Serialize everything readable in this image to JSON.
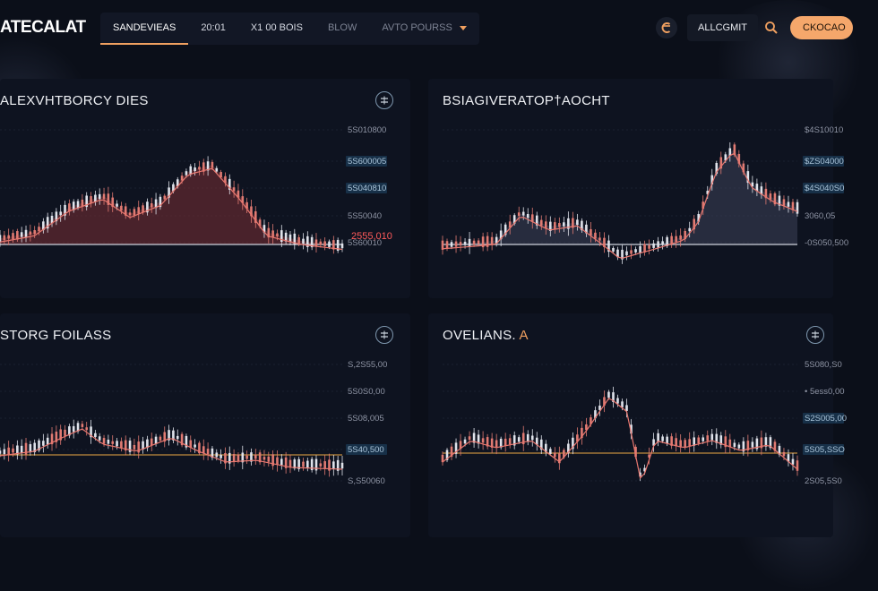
{
  "header": {
    "logo": "ATECALAT",
    "tabs": [
      {
        "label": "SANDEVIEAS",
        "active": true
      },
      {
        "label": "20:01",
        "active": false
      },
      {
        "label": "X1 00 BOIS",
        "active": false
      },
      {
        "label": "BLOW",
        "active": false,
        "dim": true
      },
      {
        "label": "AVTO POURSS",
        "active": false,
        "dim": true,
        "dropdown": true
      }
    ],
    "account_label": "ALLCGMIT",
    "cta_label": "CKOCAO",
    "icons": [
      "brand-c-icon",
      "search-icon",
      "chevron-down-icon"
    ],
    "accent_color": "#f5a76b"
  },
  "panels": [
    {
      "title": "ALEXVHTBORCY DIES",
      "price_labels": [
        "5S010800",
        "5S600005",
        "5S040810",
        "5S50040",
        "5S60010"
      ],
      "highlighted": [
        false,
        true,
        true,
        false,
        false
      ],
      "last_label": "2555,010",
      "color_up": "#e07a72",
      "color_down": "#dfe2ea",
      "fill": "#7a2f35"
    },
    {
      "title": "BSIAGIVERATOP†AOCHT",
      "price_labels": [
        "$4S10010",
        "$ZS04000",
        "$4S040S0",
        "3060,05",
        "-0S050,500"
      ],
      "highlighted": [
        false,
        true,
        true,
        false,
        false
      ],
      "color_up": "#e07a72",
      "color_down": "#dfe2ea",
      "fill": "#3c4158"
    },
    {
      "title": "STORG FOILASS",
      "price_labels": [
        "S,2S55,00",
        "5S0S0,00",
        "5S08,005",
        "5S40,500",
        "S,S50060"
      ],
      "highlighted": [
        false,
        false,
        false,
        true,
        false
      ],
      "color_up": "#e07a72",
      "color_down": "#dfe2ea",
      "baseline_color": "#c08a3e"
    },
    {
      "title": "OVELIANS.",
      "title_accent": "A",
      "price_labels": [
        "5S080,S0",
        "• 5ess0,00",
        "S2S005,00",
        "5S05,SSO",
        "2S05,5S0"
      ],
      "highlighted": [
        false,
        false,
        true,
        true,
        false
      ],
      "color_up": "#e07a72",
      "color_down": "#dfe2ea",
      "baseline_color": "#c08a3e"
    }
  ]
}
